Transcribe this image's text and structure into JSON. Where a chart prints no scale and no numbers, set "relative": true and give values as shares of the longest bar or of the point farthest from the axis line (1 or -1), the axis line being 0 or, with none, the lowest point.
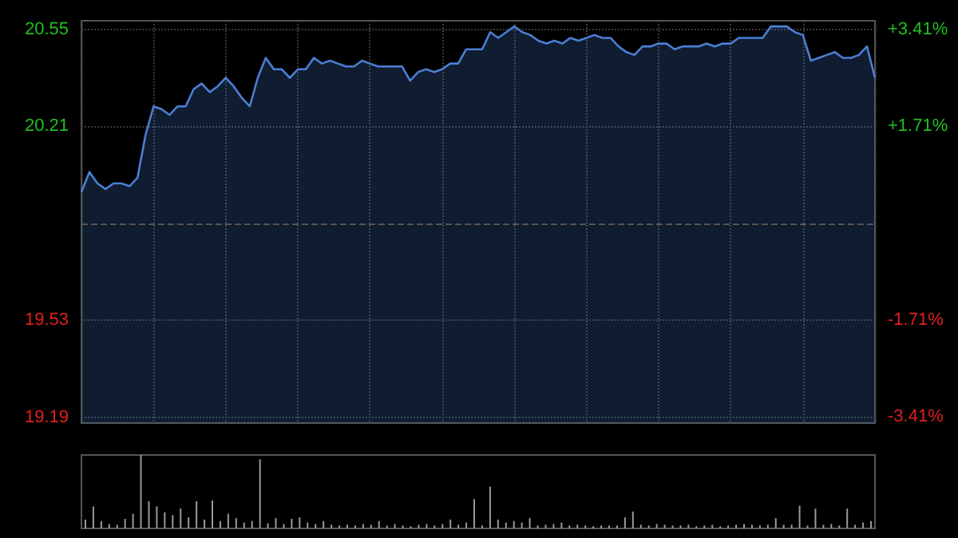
{
  "chart_data": [
    {
      "type": "area",
      "categories": [
        null,
        null,
        null,
        null,
        null,
        null,
        null,
        null,
        null,
        null,
        null,
        null,
        null,
        null,
        null,
        null,
        null,
        null,
        null,
        null,
        null,
        null,
        null,
        null,
        null,
        null,
        null,
        null,
        null,
        null,
        null,
        null,
        null,
        null,
        null,
        null,
        null,
        null,
        null,
        null,
        null,
        null,
        null,
        null,
        null,
        null,
        null,
        null,
        null,
        null,
        null,
        null,
        null,
        null,
        null,
        null,
        null,
        null,
        null,
        null,
        null,
        null,
        null,
        null,
        null,
        null,
        null,
        null,
        null,
        null,
        null,
        null,
        null,
        null,
        null,
        null,
        null,
        null,
        null,
        null,
        null,
        null,
        null,
        null,
        null,
        null,
        null,
        null,
        null,
        null,
        null,
        null,
        null,
        null,
        null,
        null,
        null,
        null,
        null,
        null
      ],
      "series": [
        {
          "color": "#4a7fd4",
          "values": [
            19.98,
            20.05,
            20.01,
            19.99,
            20.01,
            20.01,
            20.0,
            20.03,
            20.18,
            20.28,
            20.27,
            20.25,
            20.28,
            20.28,
            20.34,
            20.36,
            20.33,
            20.35,
            20.38,
            20.35,
            20.31,
            20.28,
            20.38,
            20.45,
            20.41,
            20.41,
            20.38,
            20.41,
            20.41,
            20.45,
            20.43,
            20.44,
            20.43,
            20.42,
            20.42,
            20.44,
            20.43,
            20.42,
            20.42,
            20.42,
            20.42,
            20.37,
            20.4,
            20.41,
            20.4,
            20.41,
            20.43,
            20.43,
            20.48,
            20.48,
            20.48,
            20.54,
            20.52,
            20.54,
            20.56,
            20.54,
            20.53,
            20.51,
            20.5,
            20.51,
            20.5,
            20.52,
            20.51,
            20.52,
            20.53,
            20.52,
            20.52,
            20.49,
            20.47,
            20.46,
            20.49,
            20.49,
            20.5,
            20.5,
            20.48,
            20.49,
            20.49,
            20.49,
            20.5,
            20.49,
            20.5,
            20.5,
            20.52,
            20.52,
            20.52,
            20.52,
            20.56,
            20.56,
            20.56,
            20.54,
            20.53,
            20.44,
            20.45,
            20.46,
            20.47,
            20.45,
            20.45,
            20.46,
            20.49,
            20.38
          ]
        }
      ],
      "ylim": [
        19.17,
        20.58
      ],
      "yticks": [
        19.19,
        19.53,
        20.21,
        20.55
      ],
      "y2lim": [
        -3.52,
        3.57
      ],
      "y2ticks": [
        {
          "value": -3.41,
          "label": "-3.41%"
        },
        {
          "value": -1.71,
          "label": "-1.71%"
        },
        {
          "value": 1.71,
          "label": "+1.71%"
        },
        {
          "value": 3.41,
          "label": "+3.41%"
        }
      ],
      "ref_lines": [
        {
          "axis": "y",
          "value": 19.87,
          "color": "#555555",
          "line_style": "dashed"
        }
      ],
      "grid": true,
      "tick_labels": "y"
    },
    {
      "type": "bar",
      "relative": true,
      "color": "#9a9a9a",
      "tick_labels": false,
      "categories": [
        null,
        null,
        null,
        null,
        null,
        null,
        null,
        null,
        null,
        null,
        null,
        null,
        null,
        null,
        null,
        null,
        null,
        null,
        null,
        null,
        null,
        null,
        null,
        null,
        null,
        null,
        null,
        null,
        null,
        null,
        null,
        null,
        null,
        null,
        null,
        null,
        null,
        null,
        null,
        null,
        null,
        null,
        null,
        null,
        null,
        null,
        null,
        null,
        null,
        null,
        null,
        null,
        null,
        null,
        null,
        null,
        null,
        null,
        null,
        null,
        null,
        null,
        null,
        null,
        null,
        null,
        null,
        null,
        null,
        null,
        null,
        null,
        null,
        null,
        null,
        null,
        null,
        null,
        null,
        null,
        null,
        null,
        null,
        null,
        null,
        null,
        null,
        null,
        null,
        null,
        null,
        null,
        null,
        null,
        null,
        null,
        null,
        null,
        null,
        null
      ],
      "values": [
        0.12,
        0.3,
        0.1,
        0.06,
        0.05,
        0.13,
        0.2,
        1.0,
        0.37,
        0.3,
        0.22,
        0.18,
        0.27,
        0.15,
        0.37,
        0.12,
        0.38,
        0.1,
        0.2,
        0.14,
        0.08,
        0.1,
        0.94,
        0.07,
        0.14,
        0.06,
        0.13,
        0.15,
        0.08,
        0.06,
        0.1,
        0.05,
        0.04,
        0.05,
        0.04,
        0.06,
        0.05,
        0.1,
        0.04,
        0.06,
        0.04,
        0.03,
        0.05,
        0.06,
        0.04,
        0.06,
        0.12,
        0.05,
        0.08,
        0.4,
        0.04,
        0.57,
        0.12,
        0.08,
        0.1,
        0.08,
        0.14,
        0.04,
        0.05,
        0.06,
        0.08,
        0.04,
        0.05,
        0.04,
        0.03,
        0.04,
        0.04,
        0.04,
        0.15,
        0.23,
        0.05,
        0.04,
        0.06,
        0.05,
        0.04,
        0.04,
        0.05,
        0.03,
        0.04,
        0.05,
        0.03,
        0.04,
        0.05,
        0.06,
        0.05,
        0.04,
        0.05,
        0.14,
        0.05,
        0.05,
        0.31,
        0.04,
        0.27,
        0.05,
        0.06,
        0.04,
        0.27,
        0.05,
        0.08,
        0.1
      ]
    }
  ]
}
